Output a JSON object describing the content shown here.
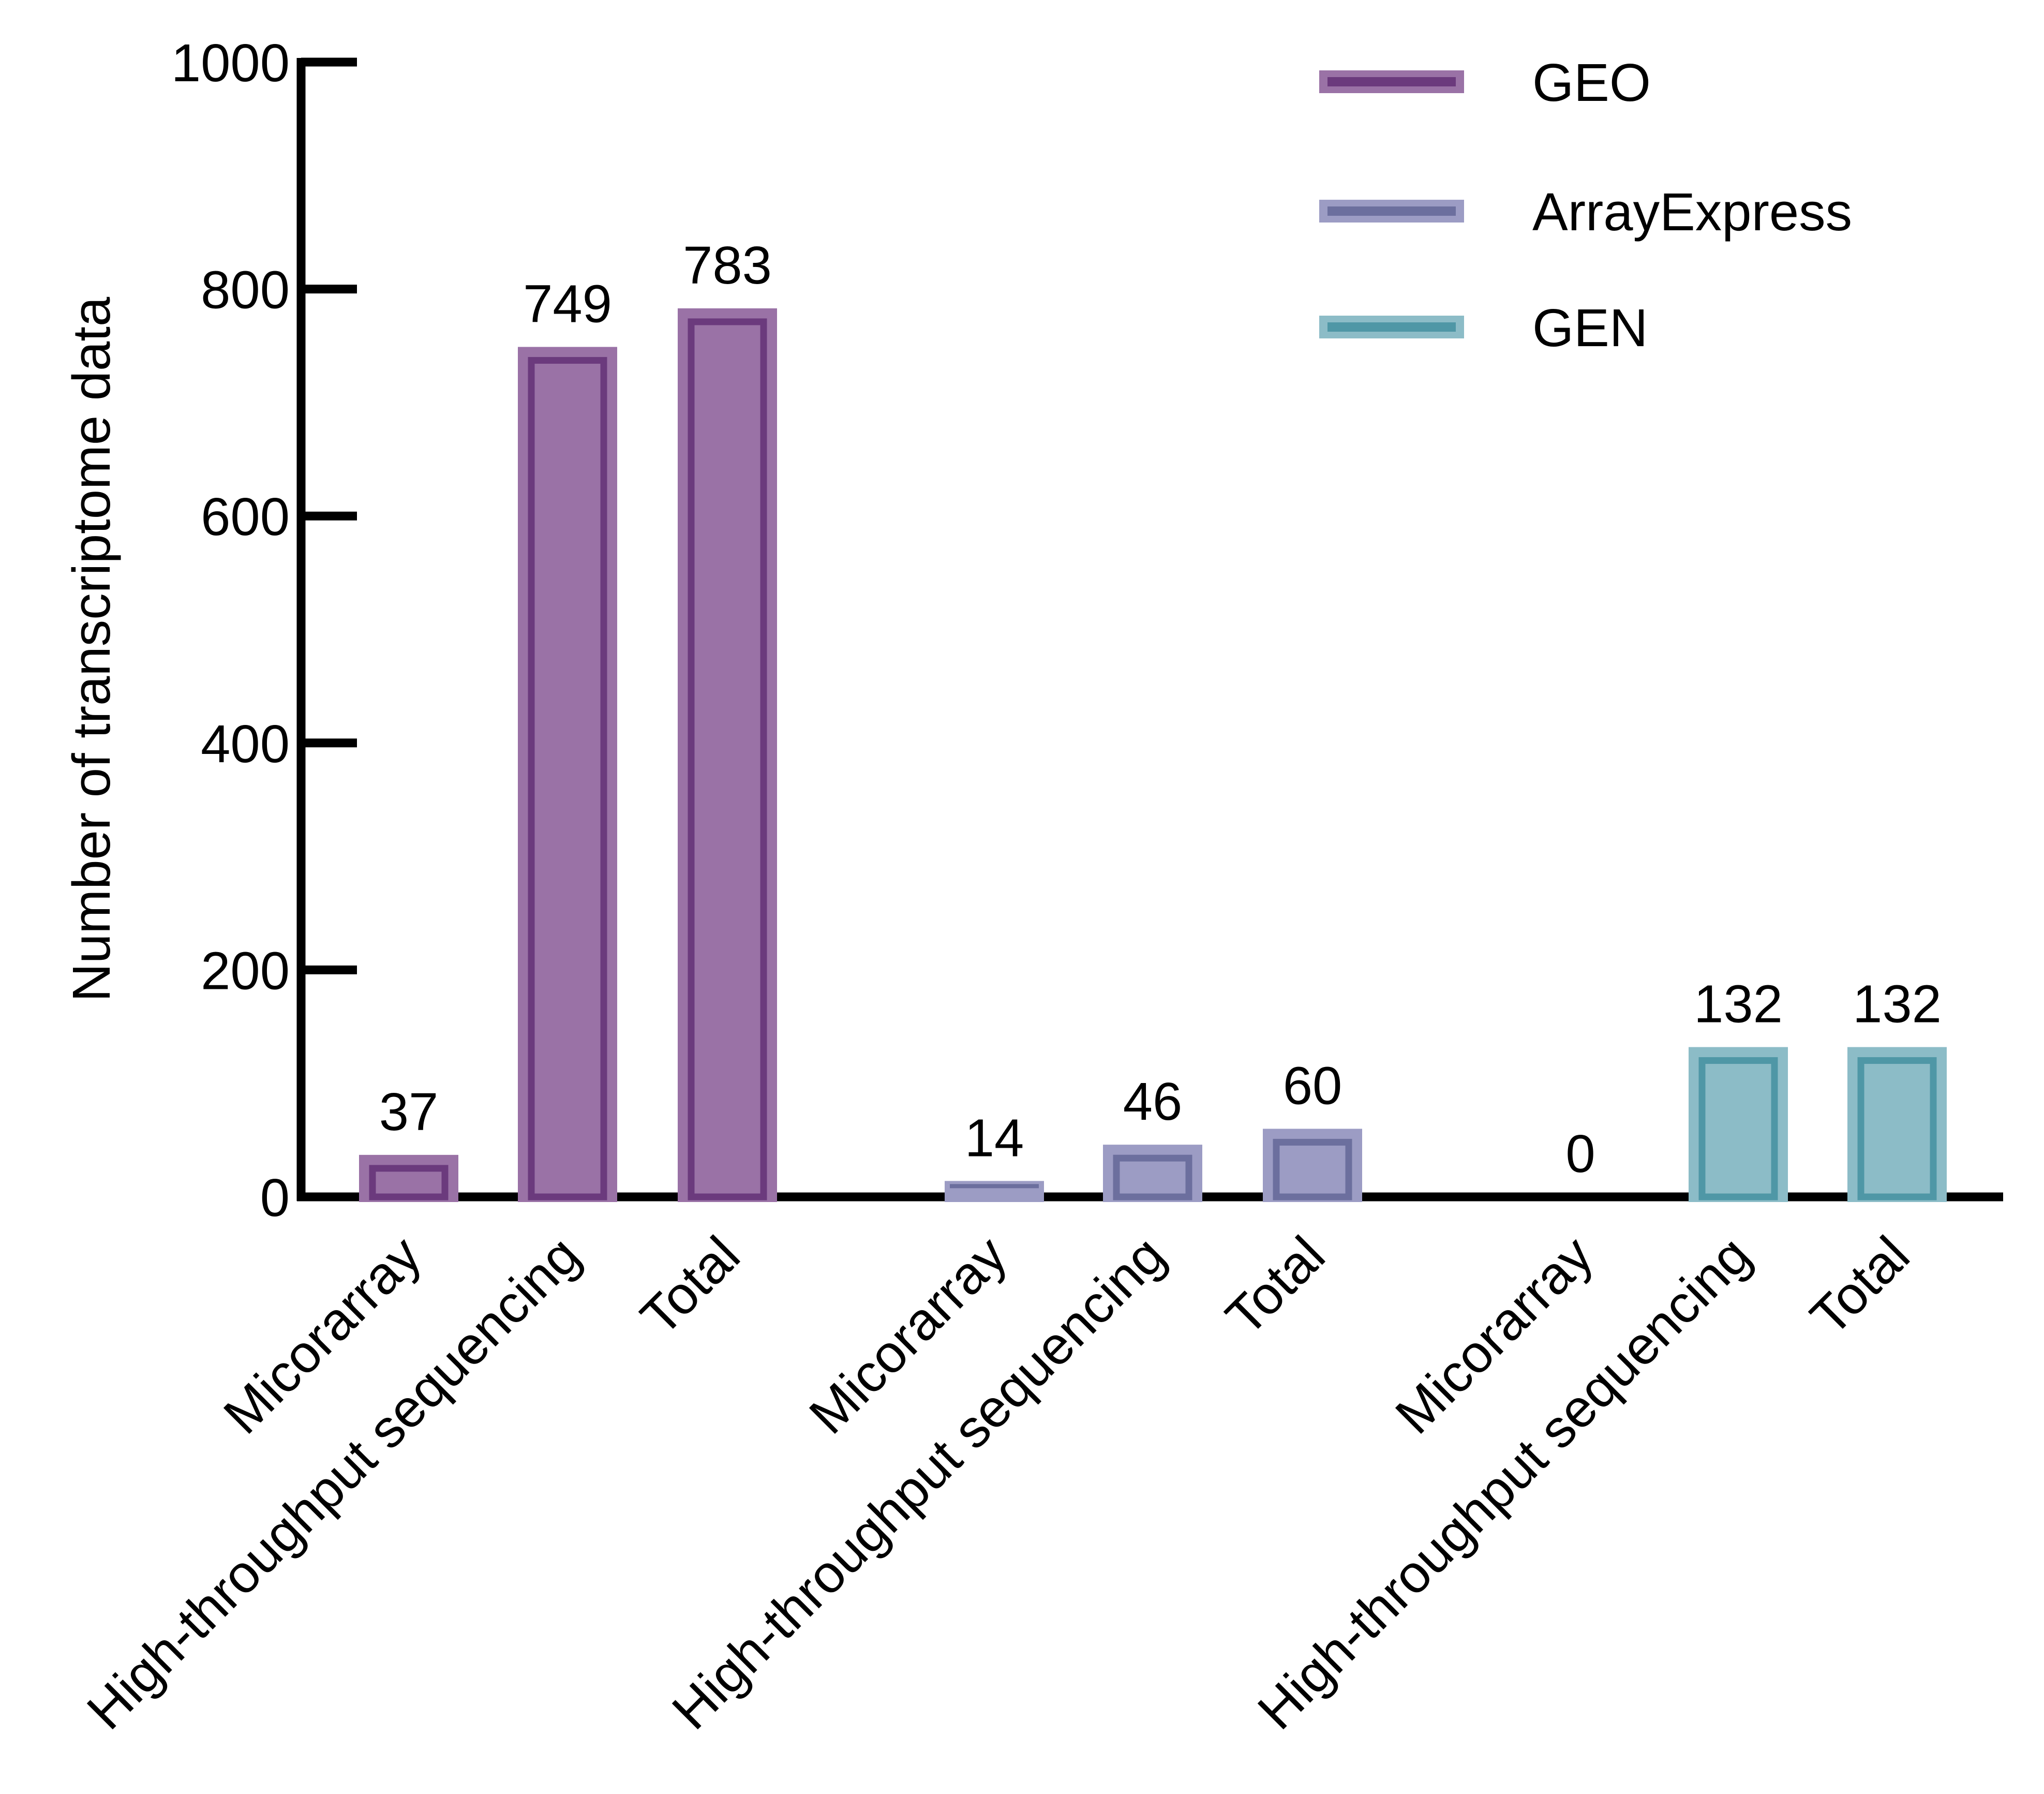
{
  "chart_data": {
    "type": "bar",
    "ylabel": "Number of transcriptome data",
    "ylim": [
      0,
      1000
    ],
    "yticks": [
      "0",
      "200",
      "400",
      "600",
      "800",
      "1000"
    ],
    "legend_position": "top-right",
    "series": [
      {
        "name": "GEO",
        "color": "#6b3a7d",
        "fill": "#9a72a6",
        "categories": [
          "Micorarray",
          "High-throughput sequencing",
          "Total"
        ],
        "values": [
          37,
          749,
          783
        ],
        "labels": [
          "37",
          "749",
          "783"
        ]
      },
      {
        "name": "ArrayExpress",
        "color": "#6c6f9e",
        "fill": "#9c9cc4",
        "categories": [
          "Micorarray",
          "High-throughput sequencing",
          "Total"
        ],
        "values": [
          14,
          46,
          60
        ],
        "labels": [
          "14",
          "46",
          "60"
        ]
      },
      {
        "name": "GEN",
        "color": "#4f97a6",
        "fill": "#8cbcc7",
        "categories": [
          "Micorarray",
          "High-throughput sequencing",
          "Total"
        ],
        "values": [
          0,
          132,
          132
        ],
        "labels": [
          "0",
          "132",
          "132"
        ]
      }
    ]
  }
}
